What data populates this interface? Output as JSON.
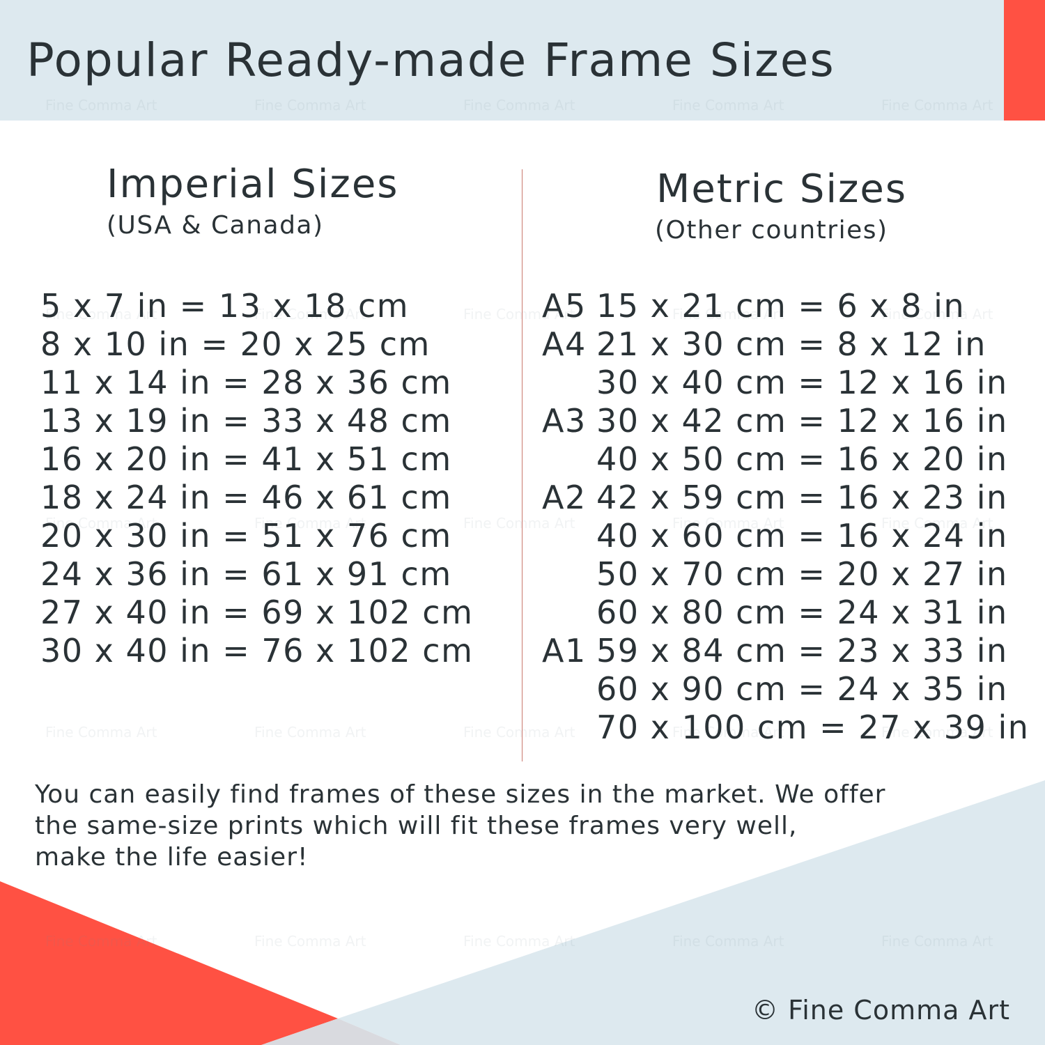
{
  "title": "Popular Ready-made Frame Sizes",
  "watermark": "Fine Comma Art",
  "colors": {
    "accent": "#ff5143",
    "light_blue": "#dde9ef",
    "text": "#2a3236"
  },
  "imperial": {
    "heading": "Imperial Sizes",
    "subheading": "(USA & Canada)",
    "rows": [
      "5 x 7 in = 13 x 18 cm",
      "8 x 10 in = 20 x 25 cm",
      "11 x 14 in = 28 x 36 cm",
      "13 x 19 in = 33 x 48 cm",
      "16 x 20 in = 41 x 51 cm",
      "18 x 24 in = 46 x 61 cm",
      "20 x 30 in = 51 x 76 cm",
      "24 x 36 in = 61 x 91 cm",
      "27 x 40 in = 69 x 102 cm",
      "30 x 40 in = 76 x 102 cm"
    ]
  },
  "metric": {
    "heading": "Metric Sizes",
    "subheading": "(Other countries)",
    "rows": [
      {
        "label": "A5",
        "dims": "15 x 21 cm = 6 x 8 in"
      },
      {
        "label": "A4",
        "dims": "21 x 30 cm = 8 x 12 in"
      },
      {
        "label": "",
        "dims": "30 x 40 cm = 12 x 16 in"
      },
      {
        "label": "A3",
        "dims": "30 x 42 cm = 12 x 16 in"
      },
      {
        "label": "",
        "dims": "40 x 50 cm = 16 x 20 in"
      },
      {
        "label": "A2",
        "dims": "42 x 59 cm = 16 x 23 in"
      },
      {
        "label": "",
        "dims": "40 x 60 cm = 16 x 24 in"
      },
      {
        "label": "",
        "dims": "50 x 70 cm = 20 x 27 in"
      },
      {
        "label": "",
        "dims": "60 x 80 cm = 24 x 31 in"
      },
      {
        "label": "A1",
        "dims": "59 x 84 cm = 23 x 33 in"
      },
      {
        "label": "",
        "dims": "60 x 90 cm = 24 x 35 in"
      },
      {
        "label": "",
        "dims": "70 x 100 cm = 27 x 39 in"
      }
    ]
  },
  "footer": {
    "lines": [
      "You can easily find frames of these sizes in the market. We offer",
      "the same-size prints which will fit these frames very well,",
      "make the life easier!"
    ]
  },
  "copyright": "© Fine Comma Art"
}
